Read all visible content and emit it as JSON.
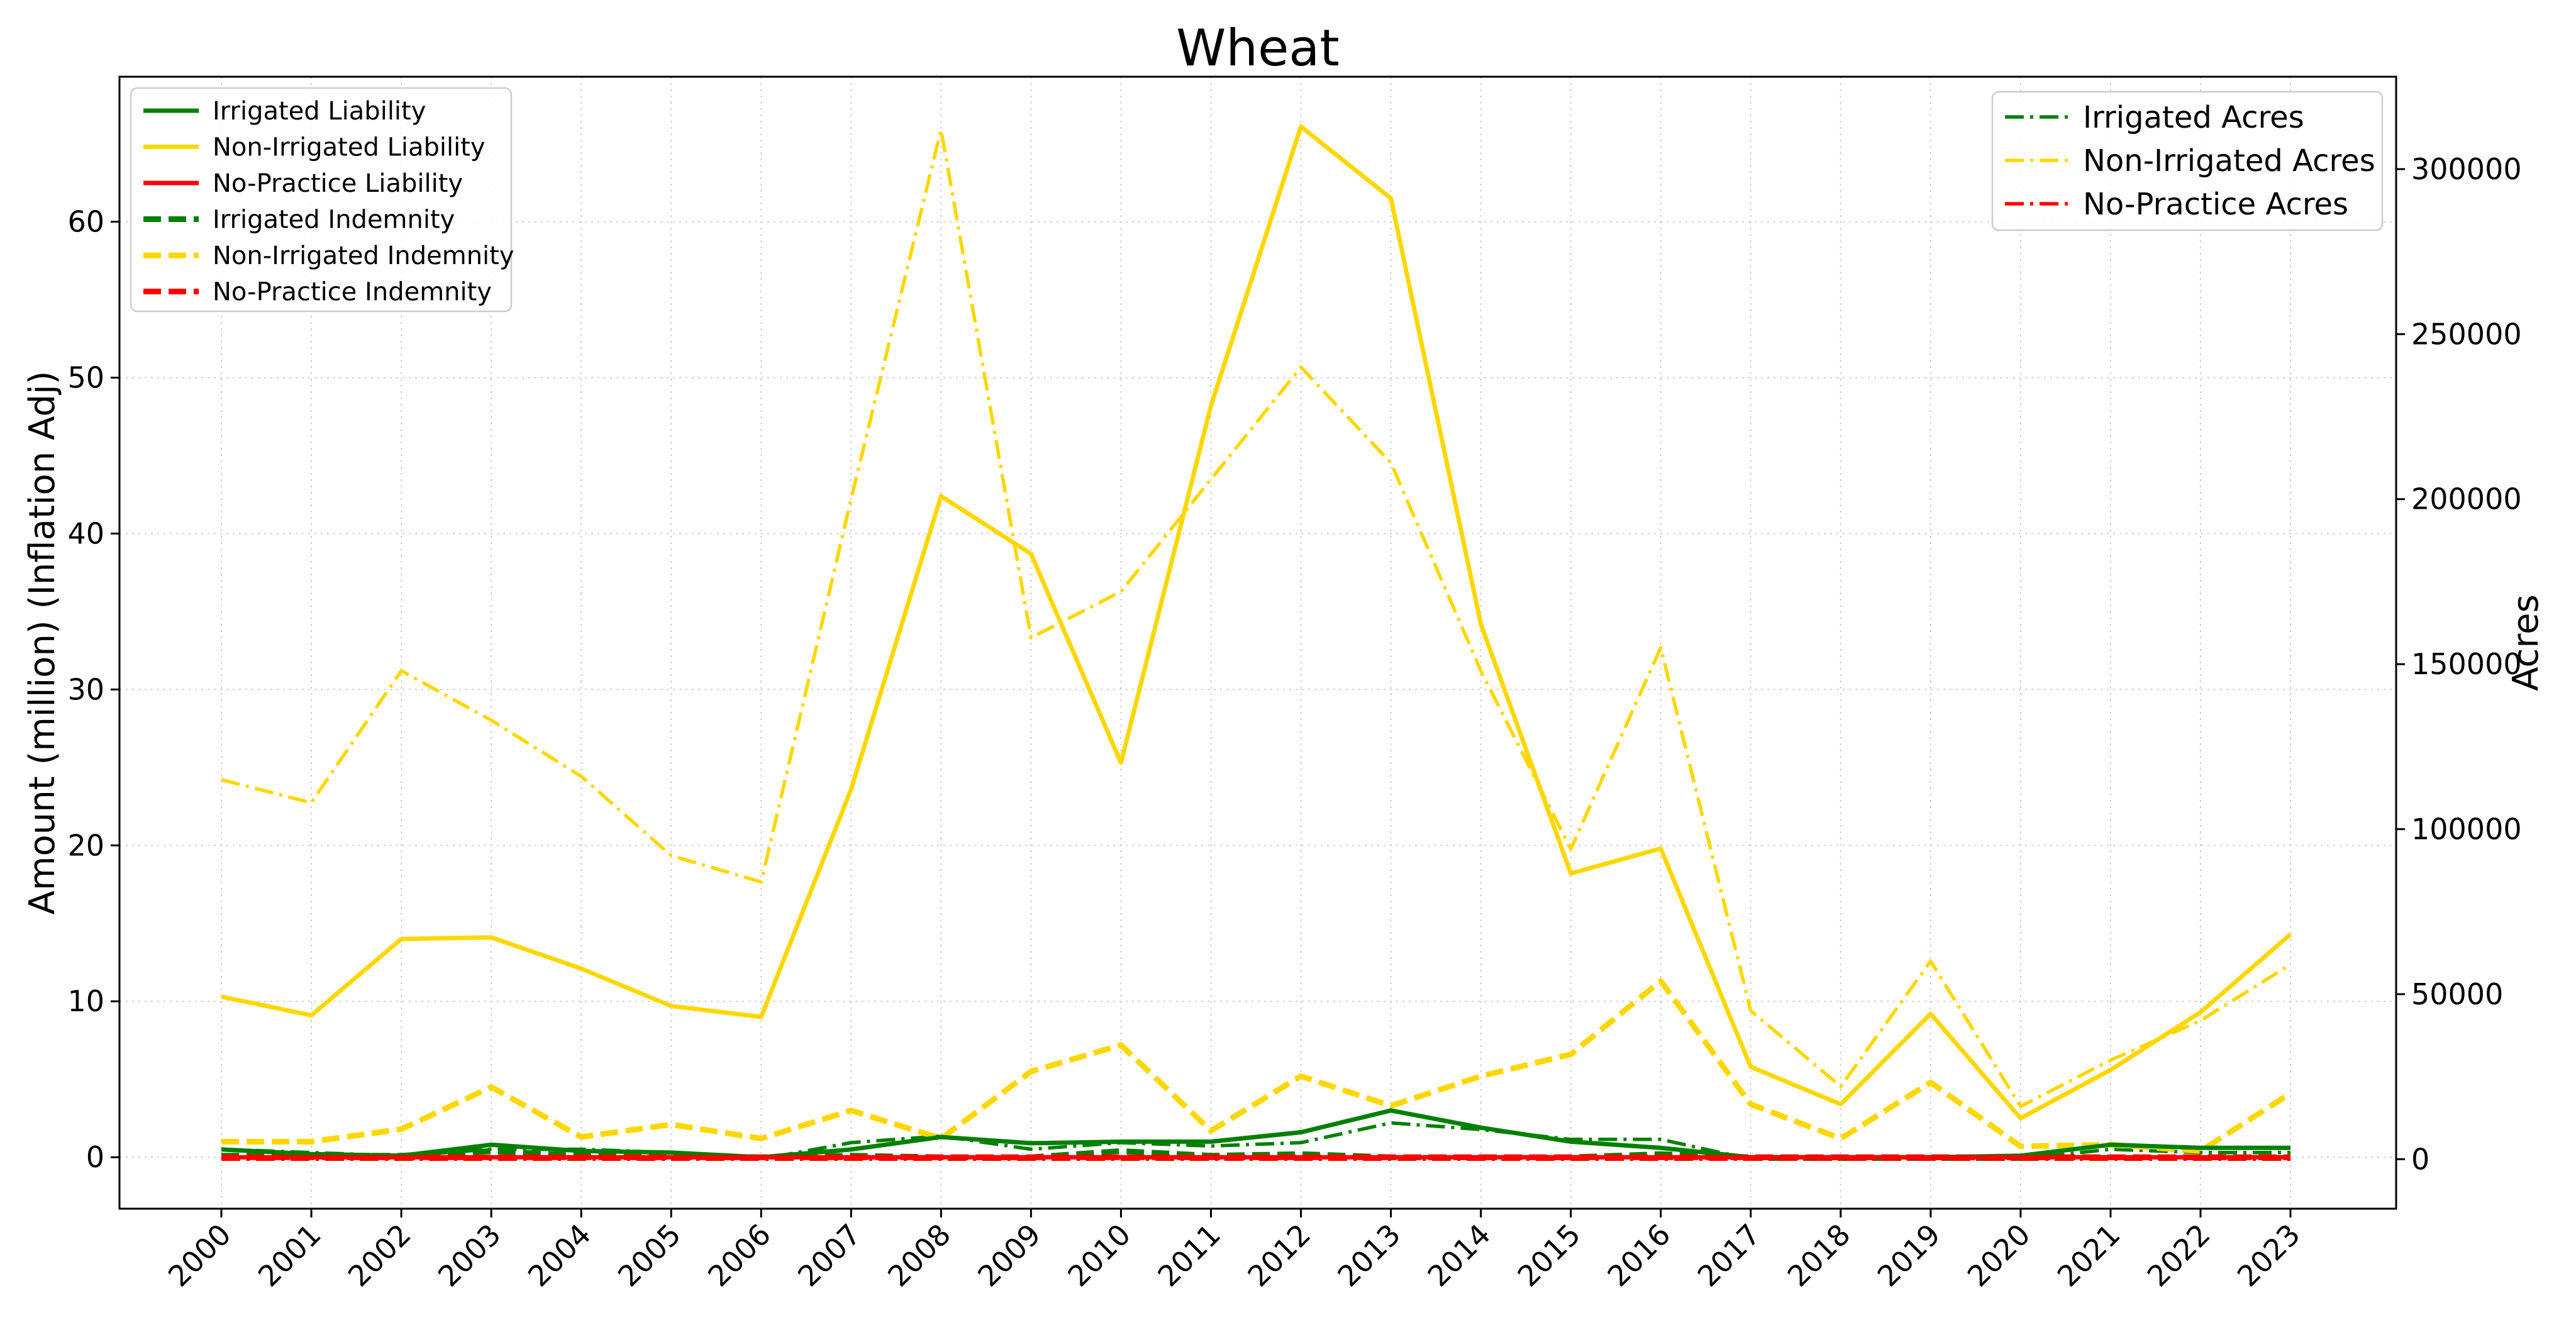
{
  "chart_data": {
    "type": "line",
    "title": "Wheat",
    "xlabel": "",
    "ylabel": "Amount (million) (Inflation Adj)",
    "y2label": "Acres",
    "ylim": [
      -3.3,
      69.3
    ],
    "y2lim": [
      -15000,
      328000
    ],
    "yticks": [
      0,
      10,
      20,
      30,
      40,
      50,
      60
    ],
    "y2ticks": [
      0,
      50000,
      100000,
      150000,
      200000,
      250000,
      300000
    ],
    "grid": true,
    "legend_left_position": "top-left",
    "legend_right_position": "top-right",
    "x": [
      "2000",
      "2001",
      "2002",
      "2003",
      "2004",
      "2005",
      "2006",
      "2007",
      "2008",
      "2009",
      "2010",
      "2011",
      "2012",
      "2013",
      "2014",
      "2015",
      "2016",
      "2017",
      "2018",
      "2019",
      "2020",
      "2021",
      "2022",
      "2023"
    ],
    "series": [
      {
        "name": "Irrigated Liability",
        "axis": "left",
        "style": "solid",
        "color": "#008000",
        "values": [
          0.5,
          0.2,
          0.1,
          0.8,
          0.4,
          0.3,
          0.0,
          0.5,
          1.3,
          0.9,
          1.0,
          1.0,
          1.6,
          3.0,
          1.9,
          1.0,
          0.6,
          0.0,
          0.0,
          0.0,
          0.1,
          0.8,
          0.6,
          0.6
        ]
      },
      {
        "name": "Non-Irrigated Liability",
        "axis": "left",
        "style": "solid",
        "color": "#FFD700",
        "values": [
          10.3,
          9.1,
          14.0,
          14.1,
          12.1,
          9.7,
          9.0,
          23.6,
          42.4,
          38.7,
          25.3,
          48.2,
          66.1,
          61.5,
          34.2,
          18.2,
          19.8,
          5.8,
          3.4,
          9.2,
          2.5,
          5.6,
          9.3,
          14.3
        ]
      },
      {
        "name": "No-Practice Liability",
        "axis": "left",
        "style": "solid",
        "color": "#FF0000",
        "values": [
          0,
          0,
          0,
          0,
          0,
          0,
          0,
          0,
          0,
          0,
          0,
          0,
          0,
          0,
          0,
          0,
          0,
          0,
          0,
          0,
          0,
          0,
          0,
          0
        ]
      },
      {
        "name": "Irrigated Indemnity",
        "axis": "left",
        "style": "dashed",
        "color": "#008000",
        "values": [
          0.1,
          0.1,
          0.1,
          0.4,
          0.1,
          0.1,
          0.0,
          0.1,
          0.0,
          0.0,
          0.4,
          0.1,
          0.2,
          0.0,
          0.0,
          0.0,
          0.2,
          0.0,
          0.0,
          0.0,
          0.0,
          0.0,
          0.0,
          0.0
        ]
      },
      {
        "name": "Non-Irrigated Indemnity",
        "axis": "left",
        "style": "dashed",
        "color": "#FFD700",
        "values": [
          1.0,
          1.0,
          1.8,
          4.5,
          1.3,
          2.1,
          1.2,
          3.0,
          1.2,
          5.5,
          7.2,
          1.7,
          5.2,
          3.3,
          5.2,
          6.6,
          11.3,
          3.4,
          1.2,
          4.8,
          0.7,
          0.8,
          0.4,
          4.1
        ]
      },
      {
        "name": "No-Practice Indemnity",
        "axis": "left",
        "style": "dashed",
        "color": "#FF0000",
        "values": [
          0,
          0,
          0,
          0,
          0,
          0,
          0,
          0,
          0,
          0,
          0,
          0,
          0,
          0,
          0,
          0,
          0,
          0,
          0,
          0,
          0,
          0,
          0,
          0
        ]
      },
      {
        "name": "Irrigated Acres",
        "axis": "right",
        "style": "dashdot",
        "color": "#008000",
        "values": [
          3000,
          2000,
          1000,
          3000,
          3000,
          2000,
          0,
          5000,
          7000,
          3000,
          5000,
          4000,
          5000,
          11000,
          9000,
          6000,
          6000,
          0,
          0,
          0,
          0,
          3000,
          2000,
          2000
        ]
      },
      {
        "name": "Non-Irrigated Acres",
        "axis": "right",
        "style": "dashdot",
        "color": "#FFD700",
        "values": [
          115000,
          108000,
          148000,
          133000,
          116000,
          92000,
          84000,
          200000,
          312000,
          158000,
          172000,
          206000,
          240000,
          211000,
          148000,
          94000,
          155000,
          45000,
          22000,
          60000,
          16000,
          30000,
          42000,
          59000
        ]
      },
      {
        "name": "No-Practice Acres",
        "axis": "right",
        "style": "dashdot",
        "color": "#FF0000",
        "values": [
          0,
          0,
          0,
          0,
          0,
          0,
          0,
          0,
          0,
          0,
          0,
          0,
          0,
          0,
          0,
          0,
          0,
          0,
          0,
          0,
          0,
          0,
          0,
          0
        ]
      }
    ],
    "legend_left": [
      "Irrigated Liability",
      "Non-Irrigated Liability",
      "No-Practice Liability",
      "Irrigated Indemnity",
      "Non-Irrigated Indemnity",
      "No-Practice Indemnity"
    ],
    "legend_right": [
      "Irrigated Acres",
      "Non-Irrigated Acres",
      "No-Practice Acres"
    ]
  }
}
